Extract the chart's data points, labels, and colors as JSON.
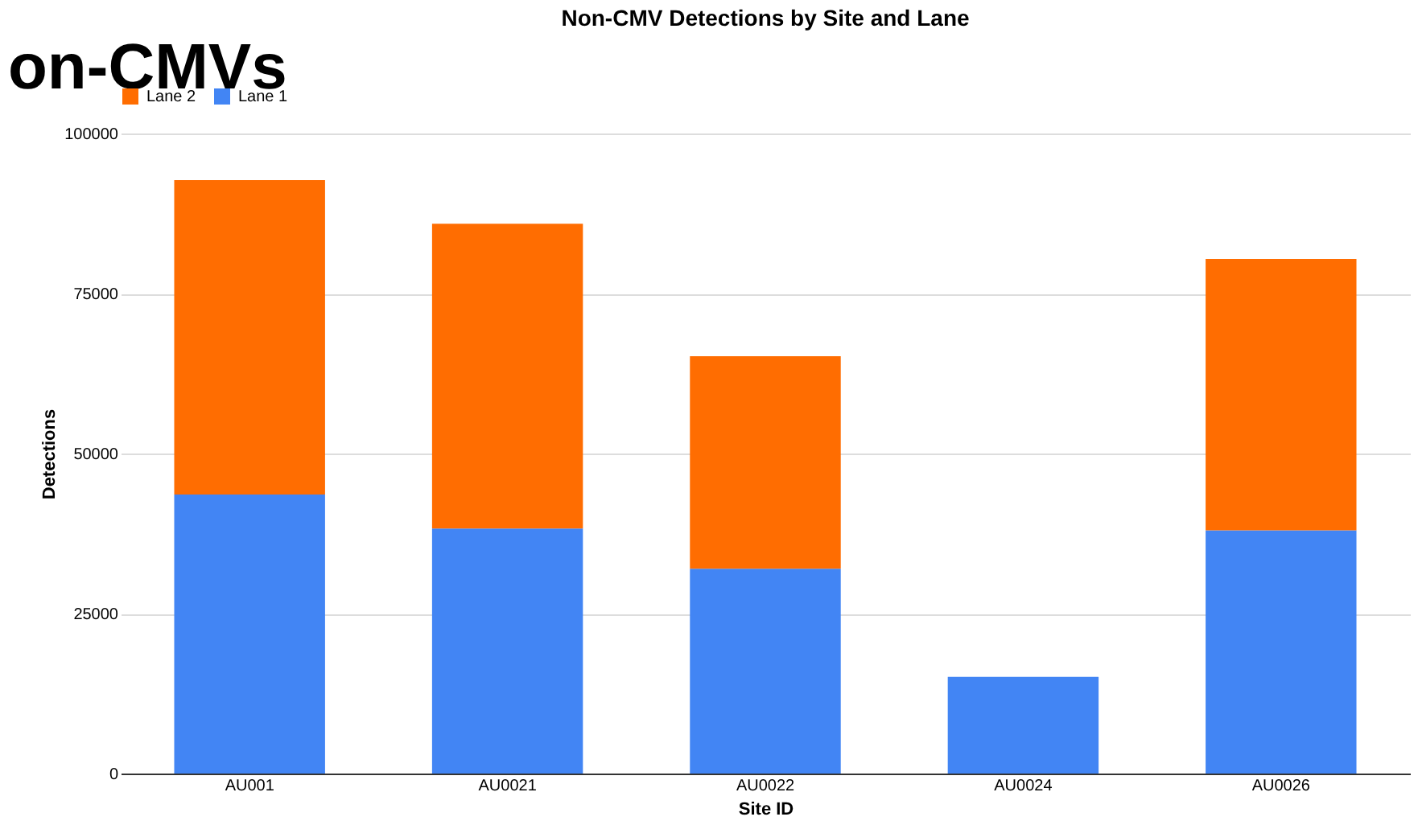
{
  "chart_data": {
    "type": "bar",
    "title": "Non-CMV Detections by Site and Lane",
    "xlabel": "Site ID",
    "ylabel": "Detections",
    "annotations": [
      "on-CMVs"
    ],
    "categories": [
      "AU001",
      "AU0021",
      "AU0022",
      "AU0024",
      "AU0026"
    ],
    "series": [
      {
        "name": "Lane 1",
        "color": "#4285f4",
        "values": [
          43600,
          38300,
          32000,
          15100,
          38000
        ]
      },
      {
        "name": "Lane 2",
        "color": "#ff6d01",
        "values": [
          49100,
          47600,
          33200,
          0,
          42400
        ]
      }
    ],
    "stacked": true,
    "ylim": [
      0,
      100000
    ],
    "yticks": [
      0,
      25000,
      50000,
      75000,
      100000
    ],
    "grid": "y",
    "legend": "top"
  }
}
